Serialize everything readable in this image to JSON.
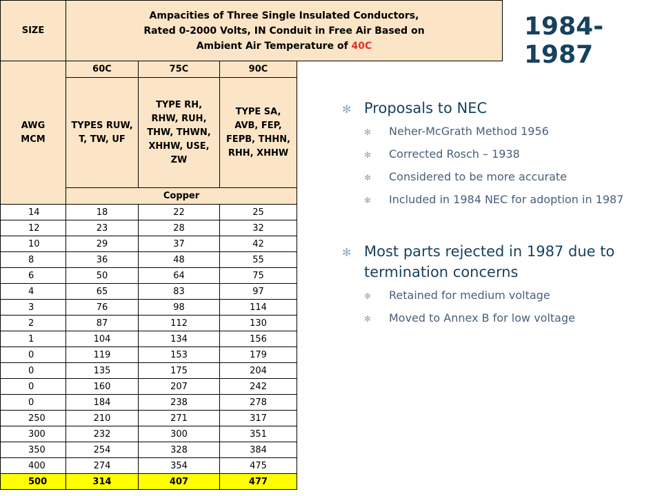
{
  "slide": {
    "title": "1984-1987",
    "bullets": [
      {
        "text": "Proposals to NEC",
        "sub": [
          "Neher-McGrath Method 1956",
          "Corrected Rosch – 1938",
          "Considered to be more accurate",
          "Included in 1984 NEC for adoption in 1987"
        ]
      },
      {
        "text": "Most parts rejected in 1987 due to termination concerns",
        "sub": [
          "Retained for medium voltage",
          "Moved to Annex B for low voltage"
        ]
      }
    ],
    "bullet_glyph": "✻"
  },
  "table": {
    "size_header": "SIZE",
    "title_line1": "Ampacities of Three Single Insulated Conductors,",
    "title_line2": "Rated 0-2000 Volts, IN Conduit in Free Air Based on",
    "title_line3_prefix": "Ambient Air Temperature of ",
    "title_line3_temp": "40C",
    "awg_label": "AWG",
    "mcm_label": "MCM",
    "temps": [
      "60C",
      "75C",
      "90C"
    ],
    "types": [
      "TYPES RUW, T, TW, UF",
      "TYPE RH, RHW, RUH, THW, THWN, XHHW, USE, ZW",
      "TYPE SA, AVB, FEP, FEPB, THHN, RHH, XHHW"
    ],
    "material": "Copper",
    "rows": [
      [
        "14",
        "18",
        "22",
        "25"
      ],
      [
        "12",
        "23",
        "28",
        "32"
      ],
      [
        "10",
        "29",
        "37",
        "42"
      ],
      [
        "8",
        "36",
        "48",
        "55"
      ],
      [
        "6",
        "50",
        "64",
        "75"
      ],
      [
        "4",
        "65",
        "83",
        "97"
      ],
      [
        "3",
        "76",
        "98",
        "114"
      ],
      [
        "2",
        "87",
        "112",
        "130"
      ],
      [
        "1",
        "104",
        "134",
        "156"
      ],
      [
        "0",
        "119",
        "153",
        "179"
      ],
      [
        "0",
        "135",
        "175",
        "204"
      ],
      [
        "0",
        "160",
        "207",
        "242"
      ],
      [
        "0",
        "184",
        "238",
        "278"
      ],
      [
        "250",
        "210",
        "271",
        "317"
      ],
      [
        "300",
        "232",
        "300",
        "351"
      ],
      [
        "350",
        "254",
        "328",
        "384"
      ],
      [
        "400",
        "274",
        "354",
        "475"
      ],
      [
        "500",
        "314",
        "407",
        "477"
      ]
    ],
    "highlight_row_index": 17,
    "colors": {
      "header_bg": "#fbe5c6",
      "highlight_bg": "#ffff00",
      "temp_red": "#e0332b",
      "title_blue": "#17415f"
    }
  }
}
